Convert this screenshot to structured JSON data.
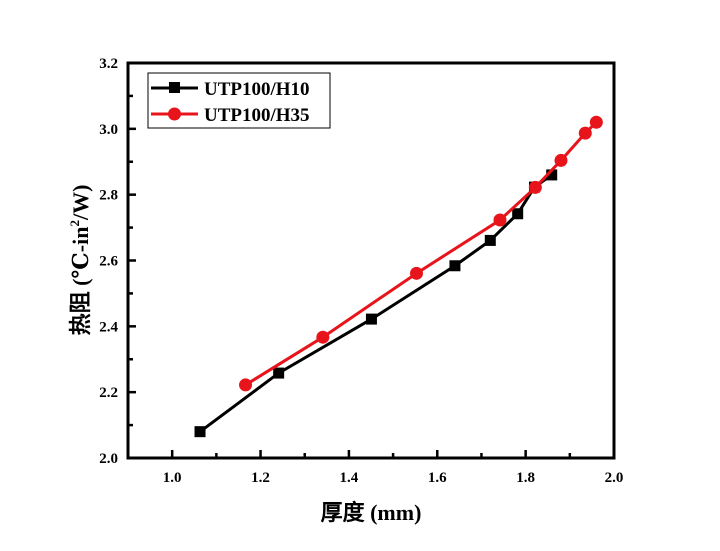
{
  "chart_data": {
    "type": "line",
    "title": "",
    "xlabel": "厚度 (mm)",
    "ylabel_main": "热阻 (℃-in",
    "ylabel_sup": "2",
    "ylabel_end": "/W)",
    "xlim": [
      0.9,
      2.0
    ],
    "ylim": [
      2.0,
      3.2
    ],
    "xticks": [
      1.0,
      1.2,
      1.4,
      1.6,
      1.8,
      2.0
    ],
    "xtick_labels": [
      "1.0",
      "1.2",
      "1.4",
      "1.6",
      "1.8",
      "2.0"
    ],
    "yticks": [
      2.0,
      2.2,
      2.4,
      2.6,
      2.8,
      3.0,
      3.2
    ],
    "ytick_labels": [
      "2.0",
      "2.2",
      "2.4",
      "2.6",
      "2.8",
      "3.0",
      "3.2"
    ],
    "grid": false,
    "legend_position": "top-left",
    "series": [
      {
        "name": "UTP100/H10",
        "color": "#000000",
        "marker": "square",
        "x": [
          1.063,
          1.241,
          1.451,
          1.64,
          1.72,
          1.782,
          1.82,
          1.859
        ],
        "y": [
          2.08,
          2.258,
          2.422,
          2.584,
          2.661,
          2.742,
          2.823,
          2.86
        ]
      },
      {
        "name": "UTP100/H35",
        "color": "#e8141b",
        "marker": "circle",
        "x": [
          1.166,
          1.341,
          1.553,
          1.742,
          1.822,
          1.88,
          1.935,
          1.96
        ],
        "y": [
          2.222,
          2.367,
          2.561,
          2.723,
          2.822,
          2.904,
          2.987,
          3.02
        ]
      }
    ]
  }
}
